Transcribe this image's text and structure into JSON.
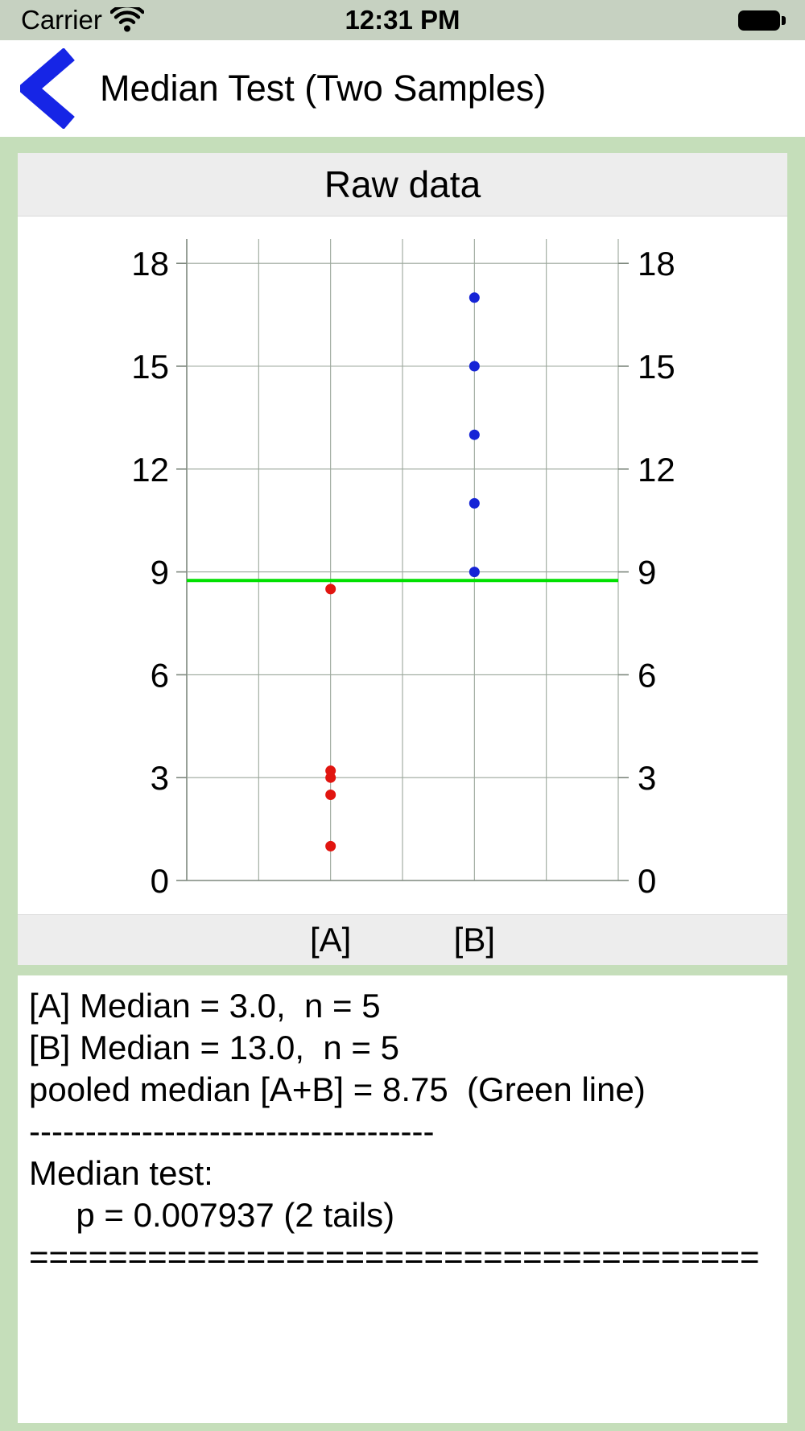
{
  "status_bar": {
    "carrier": "Carrier",
    "time": "12:31 PM"
  },
  "nav": {
    "title": "Median Test (Two Samples)"
  },
  "chart": {
    "header": "Raw data"
  },
  "chart_data": {
    "type": "scatter",
    "title": "Raw data",
    "xlabel": "",
    "ylabel": "",
    "ylim": [
      0,
      18.7
    ],
    "y_ticks": [
      0,
      3,
      6,
      9,
      12,
      15,
      18
    ],
    "grid": true,
    "series": [
      {
        "name": "[A]",
        "color": "#e11510",
        "x_frac": 0.33333,
        "values": [
          1.0,
          2.5,
          3.0,
          3.2,
          8.5
        ]
      },
      {
        "name": "[B]",
        "color": "#1624d6",
        "x_frac": 0.66667,
        "values": [
          9,
          11,
          13,
          15,
          17
        ]
      }
    ],
    "reference_line": {
      "label": "pooled median [A+B]",
      "value": 8.75,
      "color": "#00e000"
    }
  },
  "results": {
    "lines": [
      "[A] Median = 3.0,  n = 5",
      "[B] Median = 13.0,  n = 5",
      "pooled median [A+B] = 8.75  (Green line)",
      "------------------------------------",
      "Median test:",
      "     p = 0.007937 (2 tails)",
      "====================================="
    ]
  },
  "colors": {
    "background": "#c5deba",
    "status_bar": "#c6d1c1",
    "card": "#ffffff",
    "strip": "#ededed",
    "grid": "#9ba79b",
    "axis": "#7e887e",
    "accent_blue": "#1625e6"
  }
}
